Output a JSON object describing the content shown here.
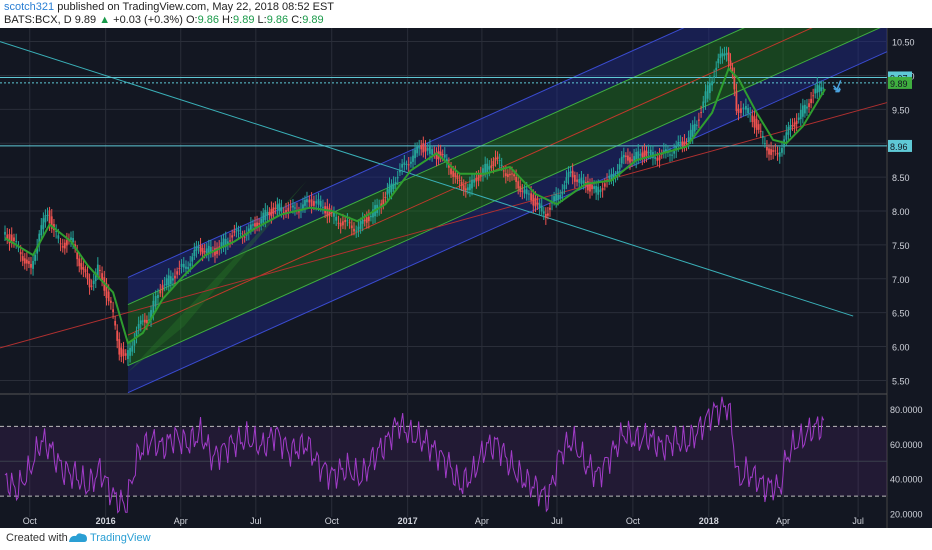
{
  "header": {
    "author": "scotch321",
    "published_text": "published on TradingView.com, May 22, 2018 08:52 EST",
    "symbol": "BATS:BCX, D",
    "last": "9.89",
    "change_arrow": "▲",
    "change": "+0.03 (+0.3%)",
    "open_label": "O:",
    "open": "9.86",
    "high_label": "H:",
    "high": "9.89",
    "low_label": "L:",
    "low": "9.86",
    "close_label": "C:",
    "close": "9.89"
  },
  "footer": {
    "created_with": "Created with",
    "brand": "TradingView"
  },
  "colors": {
    "background": "#131722",
    "candle_up": "#26a69a",
    "candle_down": "#ef5350",
    "ma": "#2f9e2f",
    "channel_green": "#1f7a1f",
    "channel_blue": "#1e2a8a",
    "rsi": "#a23cc9",
    "hline": "#5fc9d6"
  },
  "chart_data": [
    {
      "type": "candlestick",
      "title": "BATS:BCX, D",
      "price_scale": {
        "ylim": [
          5.3,
          10.7
        ],
        "ticks": [
          "10.50",
          "10.00",
          "9.50",
          "9.00",
          "8.50",
          "8.00",
          "7.50",
          "7.00",
          "6.50",
          "6.00",
          "5.50"
        ]
      },
      "x_ticks": [
        "Oct",
        "2016",
        "Apr",
        "Jul",
        "Oct",
        "2017",
        "Apr",
        "Jul",
        "Oct",
        "2018",
        "Apr",
        "Jul"
      ],
      "xlim": [
        "2015-09-01",
        "2018-08-05"
      ],
      "price_labels": [
        {
          "value": "9.97"
        },
        {
          "value": "9.89"
        },
        {
          "value": "8.96"
        }
      ],
      "close_series": [
        [
          "2015-09-01",
          7.7
        ],
        [
          "2015-09-20",
          7.45
        ],
        [
          "2015-10-05",
          7.1
        ],
        [
          "2015-10-15",
          7.7
        ],
        [
          "2015-10-25",
          7.95
        ],
        [
          "2015-11-10",
          7.5
        ],
        [
          "2015-11-25",
          7.55
        ],
        [
          "2015-12-05",
          7.15
        ],
        [
          "2015-12-15",
          6.9
        ],
        [
          "2015-12-25",
          7.15
        ],
        [
          "2016-01-10",
          6.6
        ],
        [
          "2016-01-20",
          5.95
        ],
        [
          "2016-01-28",
          5.8
        ],
        [
          "2016-02-10",
          6.25
        ],
        [
          "2016-02-25",
          6.45
        ],
        [
          "2016-03-10",
          6.85
        ],
        [
          "2016-03-25",
          7.05
        ],
        [
          "2016-04-10",
          7.2
        ],
        [
          "2016-04-25",
          7.45
        ],
        [
          "2016-05-15",
          7.4
        ],
        [
          "2016-06-05",
          7.65
        ],
        [
          "2016-06-25",
          7.7
        ],
        [
          "2016-07-15",
          7.95
        ],
        [
          "2016-08-01",
          8.05
        ],
        [
          "2016-08-15",
          8.0
        ],
        [
          "2016-09-01",
          8.1
        ],
        [
          "2016-09-15",
          8.15
        ],
        [
          "2016-10-01",
          7.95
        ],
        [
          "2016-10-20",
          7.8
        ],
        [
          "2016-11-05",
          7.75
        ],
        [
          "2016-11-20",
          7.95
        ],
        [
          "2016-12-05",
          8.15
        ],
        [
          "2016-12-20",
          8.5
        ],
        [
          "2017-01-05",
          8.75
        ],
        [
          "2017-01-20",
          8.95
        ],
        [
          "2017-02-05",
          8.85
        ],
        [
          "2017-02-20",
          8.75
        ],
        [
          "2017-03-05",
          8.4
        ],
        [
          "2017-03-20",
          8.35
        ],
        [
          "2017-04-05",
          8.6
        ],
        [
          "2017-04-20",
          8.75
        ],
        [
          "2017-05-05",
          8.55
        ],
        [
          "2017-05-20",
          8.35
        ],
        [
          "2017-06-05",
          8.15
        ],
        [
          "2017-06-20",
          7.95
        ],
        [
          "2017-07-05",
          8.25
        ],
        [
          "2017-07-20",
          8.55
        ],
        [
          "2017-08-05",
          8.4
        ],
        [
          "2017-08-20",
          8.3
        ],
        [
          "2017-09-05",
          8.45
        ],
        [
          "2017-09-20",
          8.75
        ],
        [
          "2017-10-05",
          8.8
        ],
        [
          "2017-10-20",
          8.85
        ],
        [
          "2017-11-05",
          8.8
        ],
        [
          "2017-11-20",
          8.9
        ],
        [
          "2017-12-05",
          9.0
        ],
        [
          "2017-12-20",
          9.3
        ],
        [
          "2018-01-05",
          9.9
        ],
        [
          "2018-01-15",
          10.2
        ],
        [
          "2018-01-25",
          10.4
        ],
        [
          "2018-02-01",
          10.0
        ],
        [
          "2018-02-06",
          9.45
        ],
        [
          "2018-02-15",
          9.55
        ],
        [
          "2018-02-28",
          9.3
        ],
        [
          "2018-03-10",
          9.05
        ],
        [
          "2018-03-20",
          8.85
        ],
        [
          "2018-03-28",
          8.8
        ],
        [
          "2018-04-05",
          9.1
        ],
        [
          "2018-04-15",
          9.25
        ],
        [
          "2018-04-25",
          9.45
        ],
        [
          "2018-05-05",
          9.6
        ],
        [
          "2018-05-15",
          9.8
        ],
        [
          "2018-05-22",
          9.89
        ]
      ],
      "ma_series": [
        [
          "2015-09-01",
          7.6
        ],
        [
          "2015-10-05",
          7.35
        ],
        [
          "2015-10-25",
          7.8
        ],
        [
          "2015-11-20",
          7.55
        ],
        [
          "2015-12-10",
          7.2
        ],
        [
          "2015-12-25",
          7.0
        ],
        [
          "2016-01-10",
          6.8
        ],
        [
          "2016-01-28",
          6.05
        ],
        [
          "2016-02-15",
          6.2
        ],
        [
          "2016-03-10",
          6.7
        ],
        [
          "2016-04-05",
          7.05
        ],
        [
          "2016-05-01",
          7.35
        ],
        [
          "2016-06-05",
          7.55
        ],
        [
          "2016-07-01",
          7.75
        ],
        [
          "2016-08-01",
          7.95
        ],
        [
          "2016-09-05",
          8.05
        ],
        [
          "2016-10-01",
          8.0
        ],
        [
          "2016-11-01",
          7.85
        ],
        [
          "2016-12-05",
          8.1
        ],
        [
          "2017-01-05",
          8.6
        ],
        [
          "2017-02-05",
          8.85
        ],
        [
          "2017-03-05",
          8.55
        ],
        [
          "2017-04-05",
          8.55
        ],
        [
          "2017-05-05",
          8.65
        ],
        [
          "2017-06-05",
          8.25
        ],
        [
          "2017-07-01",
          8.1
        ],
        [
          "2017-08-05",
          8.4
        ],
        [
          "2017-09-05",
          8.45
        ],
        [
          "2017-10-05",
          8.75
        ],
        [
          "2017-11-05",
          8.85
        ],
        [
          "2017-12-05",
          8.95
        ],
        [
          "2018-01-05",
          9.45
        ],
        [
          "2018-01-25",
          10.1
        ],
        [
          "2018-02-06",
          9.95
        ],
        [
          "2018-02-28",
          9.45
        ],
        [
          "2018-03-20",
          9.05
        ],
        [
          "2018-04-05",
          9.0
        ],
        [
          "2018-04-25",
          9.25
        ],
        [
          "2018-05-22",
          9.8
        ]
      ]
    },
    {
      "type": "line",
      "title": "RSI",
      "ylim": [
        18,
        88
      ],
      "y_ticks": [
        "80.0000",
        "60.0000",
        "40.0000",
        "20.0000"
      ],
      "bands": [
        70,
        30
      ],
      "midline": 50,
      "series": [
        [
          "2015-09-01",
          40
        ],
        [
          "2015-09-15",
          33
        ],
        [
          "2015-10-01",
          45
        ],
        [
          "2015-10-15",
          62
        ],
        [
          "2015-10-25",
          58
        ],
        [
          "2015-11-10",
          45
        ],
        [
          "2015-11-25",
          42
        ],
        [
          "2015-12-10",
          35
        ],
        [
          "2015-12-25",
          45
        ],
        [
          "2016-01-10",
          30
        ],
        [
          "2016-01-25",
          24
        ],
        [
          "2016-02-10",
          55
        ],
        [
          "2016-02-25",
          62
        ],
        [
          "2016-03-10",
          58
        ],
        [
          "2016-03-25",
          64
        ],
        [
          "2016-04-10",
          60
        ],
        [
          "2016-04-25",
          66
        ],
        [
          "2016-05-10",
          52
        ],
        [
          "2016-06-01",
          60
        ],
        [
          "2016-06-20",
          63
        ],
        [
          "2016-07-10",
          58
        ],
        [
          "2016-07-25",
          67
        ],
        [
          "2016-08-10",
          55
        ],
        [
          "2016-09-01",
          60
        ],
        [
          "2016-09-15",
          48
        ],
        [
          "2016-10-01",
          42
        ],
        [
          "2016-10-20",
          46
        ],
        [
          "2016-11-05",
          40
        ],
        [
          "2016-11-20",
          52
        ],
        [
          "2016-12-05",
          60
        ],
        [
          "2016-12-20",
          72
        ],
        [
          "2017-01-05",
          65
        ],
        [
          "2017-01-20",
          62
        ],
        [
          "2017-02-05",
          55
        ],
        [
          "2017-02-20",
          48
        ],
        [
          "2017-03-05",
          36
        ],
        [
          "2017-03-20",
          42
        ],
        [
          "2017-04-05",
          58
        ],
        [
          "2017-04-20",
          60
        ],
        [
          "2017-05-05",
          48
        ],
        [
          "2017-05-20",
          40
        ],
        [
          "2017-06-05",
          35
        ],
        [
          "2017-06-20",
          28
        ],
        [
          "2017-07-05",
          55
        ],
        [
          "2017-07-20",
          62
        ],
        [
          "2017-08-05",
          48
        ],
        [
          "2017-08-20",
          42
        ],
        [
          "2017-09-05",
          54
        ],
        [
          "2017-09-20",
          66
        ],
        [
          "2017-10-05",
          62
        ],
        [
          "2017-10-20",
          64
        ],
        [
          "2017-11-05",
          58
        ],
        [
          "2017-11-20",
          62
        ],
        [
          "2017-12-05",
          60
        ],
        [
          "2017-12-20",
          68
        ],
        [
          "2018-01-05",
          78
        ],
        [
          "2018-01-15",
          80
        ],
        [
          "2018-01-25",
          82
        ],
        [
          "2018-02-06",
          38
        ],
        [
          "2018-02-15",
          44
        ],
        [
          "2018-02-28",
          40
        ],
        [
          "2018-03-10",
          35
        ],
        [
          "2018-03-20",
          36
        ],
        [
          "2018-03-28",
          34
        ],
        [
          "2018-04-05",
          52
        ],
        [
          "2018-04-15",
          60
        ],
        [
          "2018-04-25",
          63
        ],
        [
          "2018-05-05",
          68
        ],
        [
          "2018-05-15",
          70
        ],
        [
          "2018-05-22",
          71
        ]
      ]
    }
  ]
}
